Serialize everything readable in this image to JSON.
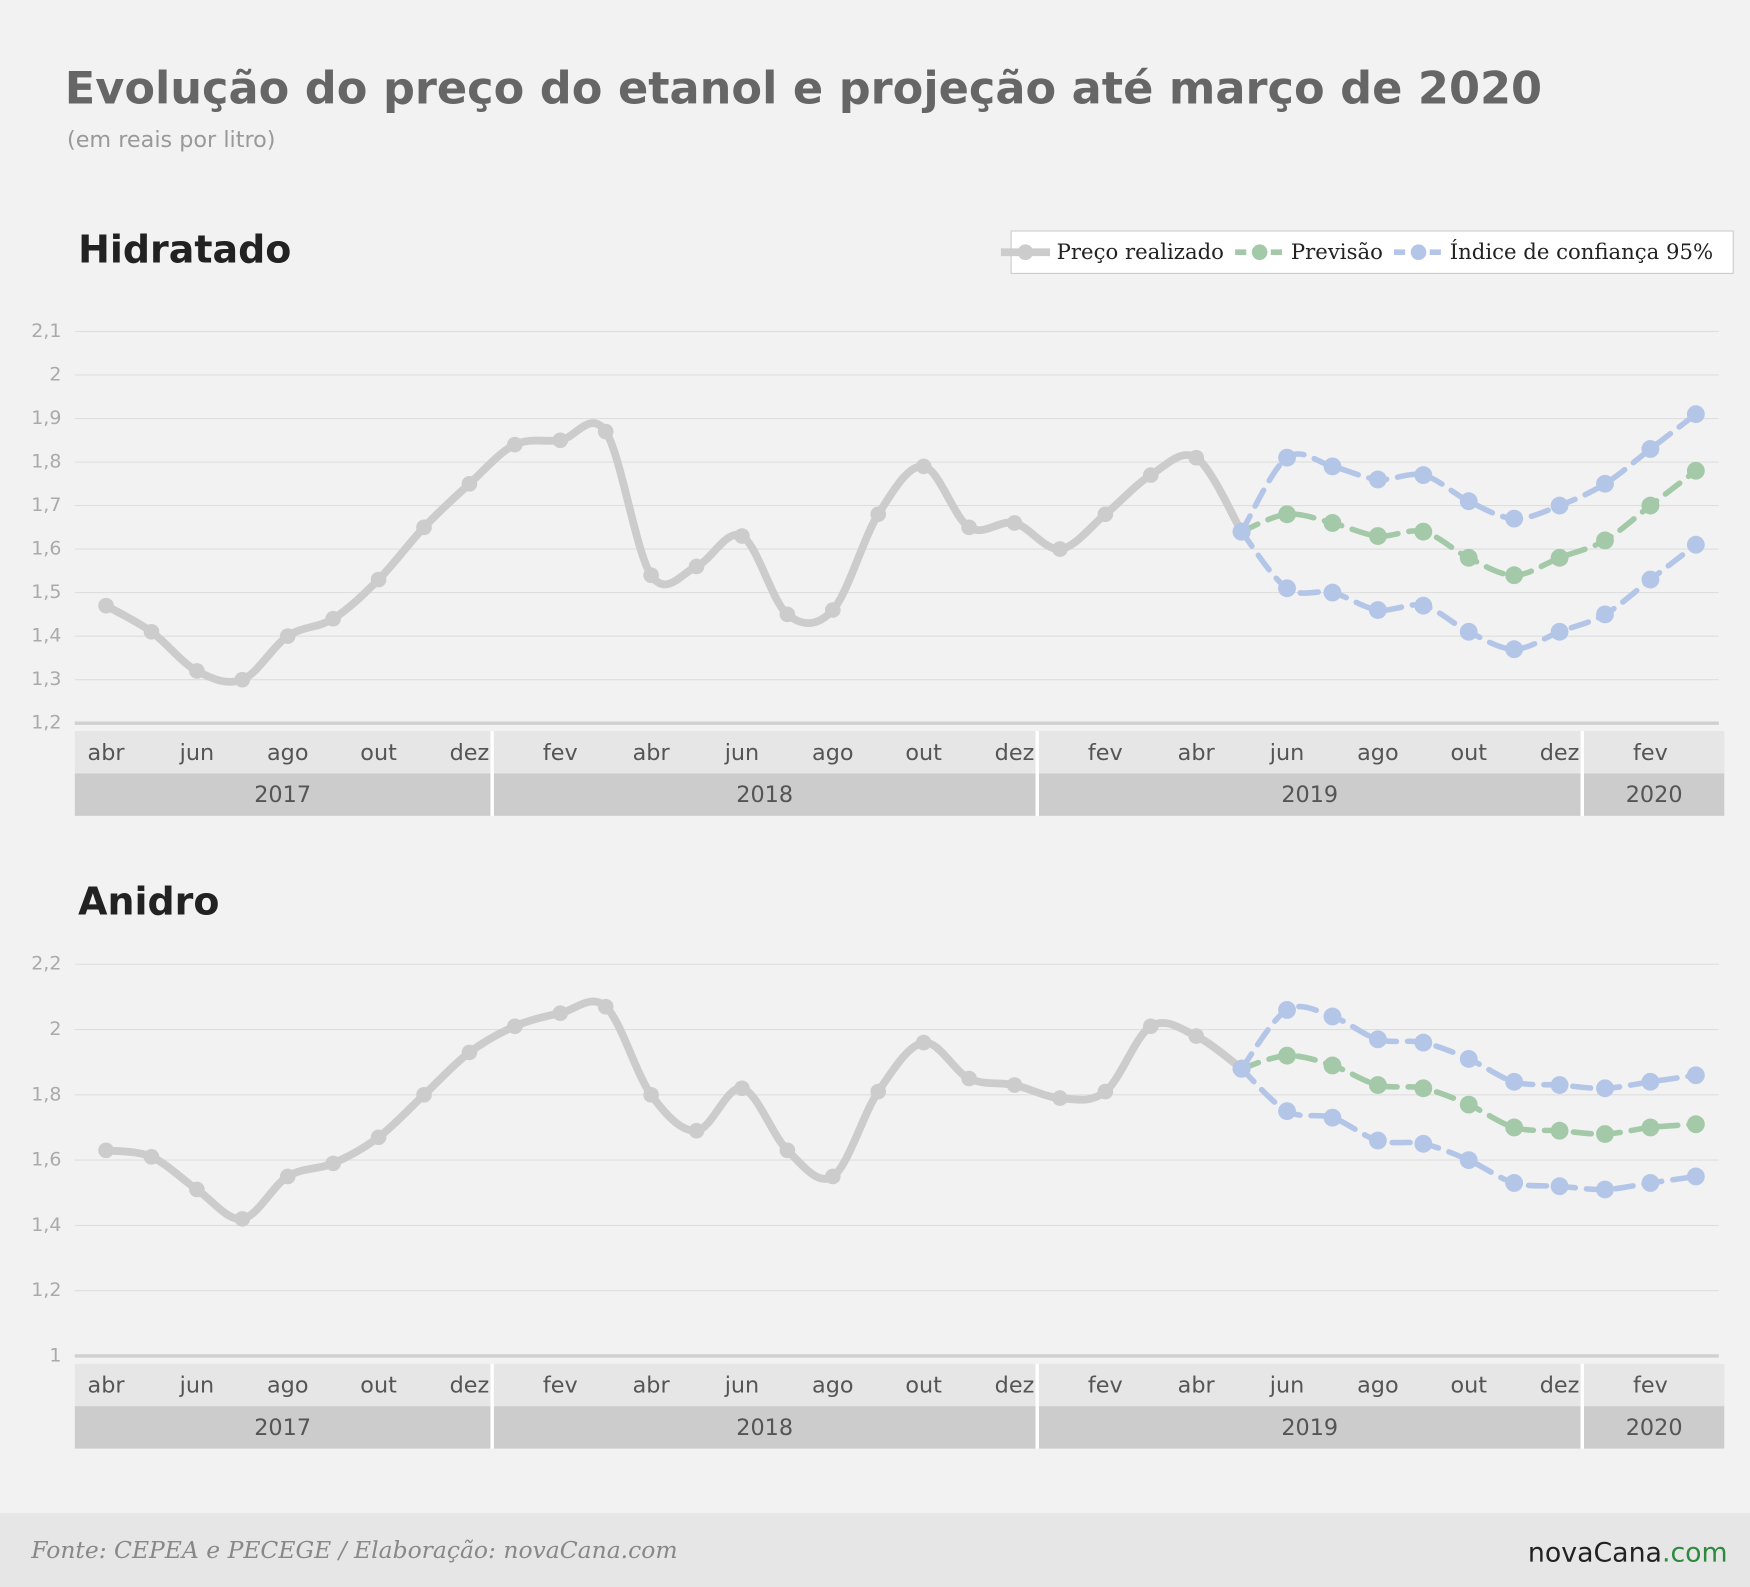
{
  "header": {
    "title": "Evolução do preço do etanol e projeção até março de 2020",
    "subtitle": "(em reais por litro)"
  },
  "footer": {
    "source": "Fonte: CEPEA e PECEGE / Elaboração: novaCana.com",
    "logo": "novaCana",
    "logo_suffix": ".com"
  },
  "chart_data": [
    {
      "type": "line",
      "title": "Hidratado",
      "categories": [
        "abr",
        null,
        "jun",
        null,
        "ago",
        null,
        "out",
        null,
        "dez",
        null,
        "fev",
        null,
        "abr",
        null,
        "jun",
        null,
        "ago",
        null,
        "out",
        null,
        "dez",
        null,
        "fev",
        null,
        "abr",
        null,
        "jun",
        null,
        "ago",
        null,
        "out",
        null,
        "dez",
        null,
        "fev",
        null
      ],
      "x_groups": [
        {
          "label": "2017",
          "count": 9
        },
        {
          "label": "2018",
          "count": 12
        },
        {
          "label": "2019",
          "count": 12
        },
        {
          "label": "2020",
          "count": 3
        }
      ],
      "ylim": [
        1.2,
        2.1
      ],
      "yticks": [
        {
          "value": 1.2,
          "label": "1,2"
        },
        {
          "value": 1.3,
          "label": "1,3"
        },
        {
          "value": 1.4,
          "label": "1,4"
        },
        {
          "value": 1.5,
          "label": "1,5"
        },
        {
          "value": 1.6,
          "label": "1,6"
        },
        {
          "value": 1.7,
          "label": "1,7"
        },
        {
          "value": 1.8,
          "label": "1,8"
        },
        {
          "value": 1.9,
          "label": "1,9"
        },
        2,
        {
          "value": 2.1,
          "label": "2,1"
        }
      ],
      "grid": true,
      "legend": "top-right",
      "series": [
        {
          "name": "Preço realizado",
          "color": "#cccccc",
          "dashed": false,
          "values": [
            1.47,
            1.41,
            1.32,
            1.3,
            1.4,
            1.44,
            1.53,
            1.65,
            1.75,
            1.84,
            1.85,
            1.87,
            1.54,
            1.56,
            1.63,
            1.45,
            1.46,
            1.68,
            1.79,
            1.65,
            1.66,
            1.6,
            1.68,
            1.77,
            1.81,
            1.64,
            null,
            null,
            null,
            null,
            null,
            null,
            null,
            null,
            null,
            null
          ]
        },
        {
          "name": "Previsão",
          "color": "#a3c9a8",
          "dashed": true,
          "values": [
            null,
            null,
            null,
            null,
            null,
            null,
            null,
            null,
            null,
            null,
            null,
            null,
            null,
            null,
            null,
            null,
            null,
            null,
            null,
            null,
            null,
            null,
            null,
            null,
            null,
            1.64,
            1.68,
            1.66,
            1.63,
            1.64,
            1.58,
            1.54,
            1.58,
            1.62,
            1.7,
            1.78
          ]
        },
        {
          "name": "Índice de confiança 95%",
          "color": "#b4c6e7",
          "dashed": true,
          "values": [
            null,
            null,
            null,
            null,
            null,
            null,
            null,
            null,
            null,
            null,
            null,
            null,
            null,
            null,
            null,
            null,
            null,
            null,
            null,
            null,
            null,
            null,
            null,
            null,
            null,
            1.64,
            1.81,
            1.79,
            1.76,
            1.77,
            1.71,
            1.67,
            1.7,
            1.75,
            1.83,
            1.91
          ],
          "lower": [
            null,
            null,
            null,
            null,
            null,
            null,
            null,
            null,
            null,
            null,
            null,
            null,
            null,
            null,
            null,
            null,
            null,
            null,
            null,
            null,
            null,
            null,
            null,
            null,
            null,
            1.64,
            1.51,
            1.5,
            1.46,
            1.47,
            1.41,
            1.37,
            1.41,
            1.45,
            1.53,
            1.61
          ]
        }
      ]
    },
    {
      "type": "line",
      "title": "Anidro",
      "categories": [
        "abr",
        null,
        "jun",
        null,
        "ago",
        null,
        "out",
        null,
        "dez",
        null,
        "fev",
        null,
        "abr",
        null,
        "jun",
        null,
        "ago",
        null,
        "out",
        null,
        "dez",
        null,
        "fev",
        null,
        "abr",
        null,
        "jun",
        null,
        "ago",
        null,
        "out",
        null,
        "dez",
        null,
        "fev",
        null
      ],
      "x_groups": [
        {
          "label": "2017",
          "count": 9
        },
        {
          "label": "2018",
          "count": 12
        },
        {
          "label": "2019",
          "count": 12
        },
        {
          "label": "2020",
          "count": 3
        }
      ],
      "ylim": [
        1,
        2.2
      ],
      "yticks": [
        1,
        {
          "value": 1.2,
          "label": "1,2"
        },
        {
          "value": 1.4,
          "label": "1,4"
        },
        {
          "value": 1.6,
          "label": "1,6"
        },
        {
          "value": 1.8,
          "label": "1,8"
        },
        2,
        {
          "value": 2.2,
          "label": "2,2"
        }
      ],
      "grid": true,
      "series": [
        {
          "color": "#cccccc",
          "dashed": false,
          "values": [
            1.63,
            1.61,
            1.51,
            1.42,
            1.55,
            1.59,
            1.67,
            1.8,
            1.93,
            2.01,
            2.05,
            2.07,
            1.8,
            1.69,
            1.82,
            1.63,
            1.55,
            1.81,
            1.96,
            1.85,
            1.83,
            1.79,
            1.81,
            2.01,
            1.98,
            1.88,
            null,
            null,
            null,
            null,
            null,
            null,
            null,
            null,
            null,
            null
          ]
        },
        {
          "color": "#a3c9a8",
          "dashed": true,
          "values": [
            null,
            null,
            null,
            null,
            null,
            null,
            null,
            null,
            null,
            null,
            null,
            null,
            null,
            null,
            null,
            null,
            null,
            null,
            null,
            null,
            null,
            null,
            null,
            null,
            null,
            1.88,
            1.92,
            1.89,
            1.83,
            1.82,
            1.77,
            1.7,
            1.69,
            1.68,
            1.7,
            1.71
          ]
        },
        {
          "color": "#b4c6e7",
          "dashed": true,
          "values": [
            null,
            null,
            null,
            null,
            null,
            null,
            null,
            null,
            null,
            null,
            null,
            null,
            null,
            null,
            null,
            null,
            null,
            null,
            null,
            null,
            null,
            null,
            null,
            null,
            null,
            1.88,
            2.06,
            2.04,
            1.97,
            1.96,
            1.91,
            1.84,
            1.83,
            1.82,
            1.84,
            1.86
          ],
          "lower": [
            null,
            null,
            null,
            null,
            null,
            null,
            null,
            null,
            null,
            null,
            null,
            null,
            null,
            null,
            null,
            null,
            null,
            null,
            null,
            null,
            null,
            null,
            null,
            null,
            null,
            1.88,
            1.75,
            1.73,
            1.66,
            1.65,
            1.6,
            1.53,
            1.52,
            1.51,
            1.53,
            1.55
          ]
        }
      ]
    }
  ]
}
